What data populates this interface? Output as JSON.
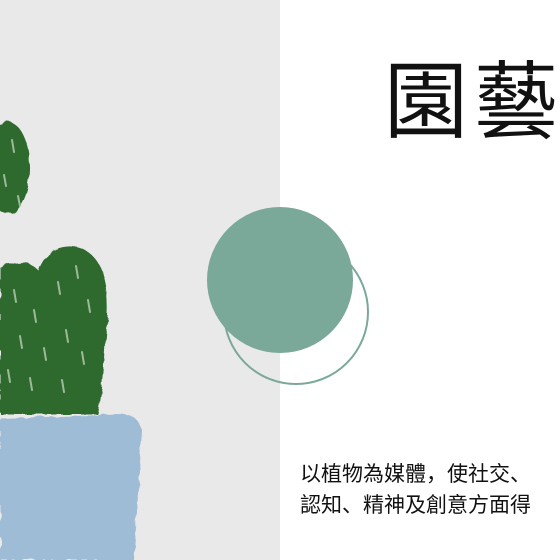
{
  "slide": {
    "title": "園藝",
    "body_lines": [
      "以植物為媒體，使社交、",
      "認知、精神及創意方面得"
    ]
  },
  "colors": {
    "left_panel": "#e9e9e9",
    "plant_green": "#2f6b2f",
    "pot_blue": "#9fbcd6",
    "accent_circle": "#7aa899",
    "text": "#111111"
  }
}
